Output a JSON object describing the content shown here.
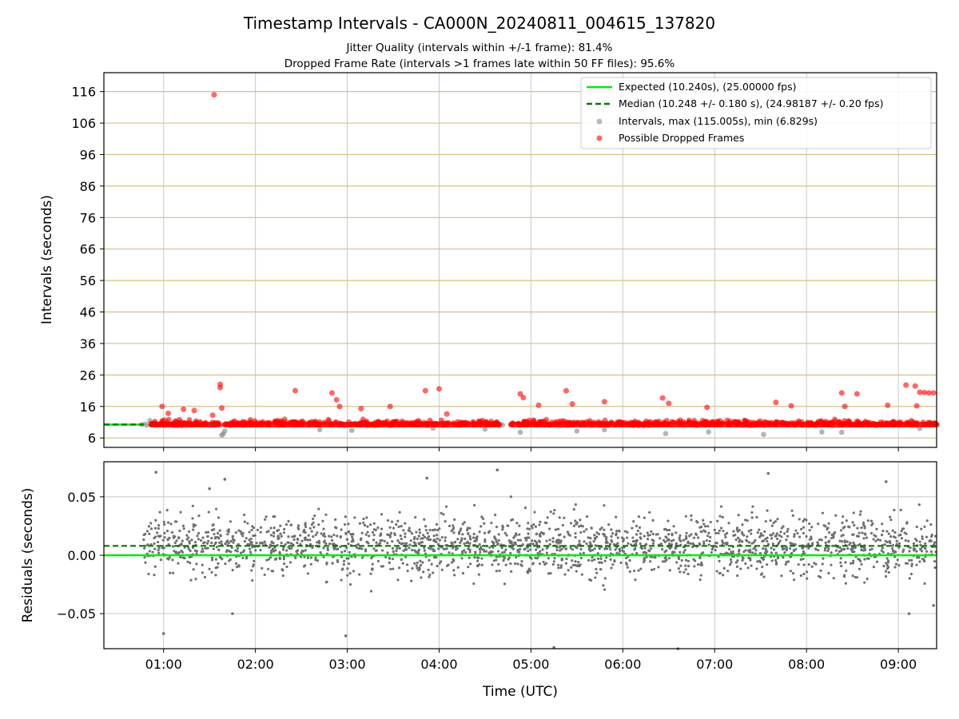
{
  "chart_data": [
    {
      "type": "scatter",
      "title": "Timestamp Intervals - CA000N_20240811_004615_137820",
      "subtitle_lines": [
        "Jitter Quality (intervals within +/-1 frame): 81.4%",
        "Dropped Frame Rate (intervals >1 frames late within 50 FF files): 95.6%"
      ],
      "xlabel": "",
      "ylabel": "Intervals (seconds)",
      "xlim": [
        "00:21",
        "09:25"
      ],
      "ylim": [
        3,
        122
      ],
      "yticks": [
        6,
        16,
        26,
        36,
        46,
        56,
        66,
        76,
        86,
        96,
        106,
        116
      ],
      "grid": true,
      "legend_position": "top-right",
      "legend": [
        "Expected (10.240s), (25.00000 fps)",
        "Median (10.248 +/- 0.180 s), (24.98187 +/- 0.20 fps)",
        "Intervals, max (115.005s), min (6.829s)",
        "Possible Dropped Frames"
      ],
      "expected_interval": 10.24,
      "median_interval": 10.248,
      "max_interval": 115.005,
      "min_interval": 6.829,
      "dropped_band": [
        {
          "start": "00:52",
          "end": "01:36",
          "value": 10.24
        },
        {
          "start": "01:40",
          "end": "04:39",
          "value": 10.24
        },
        {
          "start": "04:47",
          "end": "09:25",
          "value": 10.24
        }
      ],
      "dropped_outliers": [
        {
          "x": "01:33",
          "y": 115
        },
        {
          "x": "01:37",
          "y": 23.0
        },
        {
          "x": "01:37",
          "y": 22.0
        },
        {
          "x": "00:59",
          "y": 16.0
        },
        {
          "x": "01:03",
          "y": 13.8
        },
        {
          "x": "01:13",
          "y": 15.1
        },
        {
          "x": "01:20",
          "y": 14.7
        },
        {
          "x": "01:32",
          "y": 13.2
        },
        {
          "x": "01:38",
          "y": 15.5
        },
        {
          "x": "02:26",
          "y": 21.0
        },
        {
          "x": "02:50",
          "y": 20.3
        },
        {
          "x": "02:53",
          "y": 18.1
        },
        {
          "x": "02:55",
          "y": 16.0
        },
        {
          "x": "03:09",
          "y": 15.3
        },
        {
          "x": "03:28",
          "y": 16.0
        },
        {
          "x": "03:51",
          "y": 21.0
        },
        {
          "x": "04:00",
          "y": 21.6
        },
        {
          "x": "04:05",
          "y": 13.6
        },
        {
          "x": "04:53",
          "y": 20.0
        },
        {
          "x": "04:55",
          "y": 18.8
        },
        {
          "x": "05:05",
          "y": 16.4
        },
        {
          "x": "05:23",
          "y": 21.0
        },
        {
          "x": "05:27",
          "y": 16.8
        },
        {
          "x": "05:48",
          "y": 17.5
        },
        {
          "x": "06:26",
          "y": 18.7
        },
        {
          "x": "06:30",
          "y": 17.0
        },
        {
          "x": "06:55",
          "y": 15.7
        },
        {
          "x": "07:40",
          "y": 17.3
        },
        {
          "x": "07:50",
          "y": 16.2
        },
        {
          "x": "08:23",
          "y": 20.3
        },
        {
          "x": "08:25",
          "y": 16.0
        },
        {
          "x": "08:33",
          "y": 20.0
        },
        {
          "x": "08:53",
          "y": 16.4
        },
        {
          "x": "09:05",
          "y": 22.8
        },
        {
          "x": "09:11",
          "y": 22.5
        },
        {
          "x": "09:14",
          "y": 20.5
        },
        {
          "x": "09:17",
          "y": 20.4
        },
        {
          "x": "09:20",
          "y": 20.3
        },
        {
          "x": "09:23",
          "y": 20.3
        },
        {
          "x": "09:12",
          "y": 16.2
        }
      ],
      "interval_low_outliers": [
        {
          "x": "00:46",
          "y": 10.24
        },
        {
          "x": "00:51",
          "y": 11.5
        },
        {
          "x": "01:38",
          "y": 6.9
        },
        {
          "x": "01:39",
          "y": 7.3
        },
        {
          "x": "01:40",
          "y": 8.2
        },
        {
          "x": "02:42",
          "y": 8.6
        },
        {
          "x": "03:03",
          "y": 8.4
        },
        {
          "x": "03:56",
          "y": 9.1
        },
        {
          "x": "04:30",
          "y": 8.8
        },
        {
          "x": "04:53",
          "y": 7.8
        },
        {
          "x": "05:30",
          "y": 8.2
        },
        {
          "x": "05:48",
          "y": 8.6
        },
        {
          "x": "06:28",
          "y": 7.4
        },
        {
          "x": "06:56",
          "y": 7.9
        },
        {
          "x": "07:32",
          "y": 7.1
        },
        {
          "x": "08:10",
          "y": 7.9
        },
        {
          "x": "08:23",
          "y": 7.8
        },
        {
          "x": "09:14",
          "y": 9.0
        }
      ]
    },
    {
      "type": "scatter",
      "title": "",
      "xlabel": "Time (UTC)",
      "ylabel": "Residuals (seconds)",
      "xlim": [
        "00:21",
        "09:25"
      ],
      "ylim": [
        -0.08,
        0.08
      ],
      "yticks": [
        -0.05,
        0.0,
        0.05
      ],
      "ytick_labels": [
        "−0.05",
        "0.00",
        "0.05"
      ],
      "xticks": [
        "01:00",
        "02:00",
        "03:00",
        "04:00",
        "05:00",
        "06:00",
        "07:00",
        "08:00",
        "09:00"
      ],
      "grid": true,
      "expected_line": 0.0,
      "median_line": 0.008,
      "residual_std": 0.018,
      "series_extent": [
        "00:47",
        "09:25"
      ],
      "residual_outliers": [
        {
          "x": "00:55",
          "y": 0.071
        },
        {
          "x": "01:00",
          "y": -0.067
        },
        {
          "x": "01:30",
          "y": 0.057
        },
        {
          "x": "01:40",
          "y": 0.065
        },
        {
          "x": "01:45",
          "y": -0.05
        },
        {
          "x": "02:59",
          "y": -0.069
        },
        {
          "x": "03:52",
          "y": 0.066
        },
        {
          "x": "04:38",
          "y": 0.073
        },
        {
          "x": "05:15",
          "y": -0.079
        },
        {
          "x": "06:36",
          "y": -0.08
        },
        {
          "x": "07:35",
          "y": 0.07
        },
        {
          "x": "08:52",
          "y": 0.063
        },
        {
          "x": "09:07",
          "y": -0.05
        },
        {
          "x": "09:23",
          "y": -0.043
        }
      ]
    }
  ],
  "colors": {
    "expected_line": "#00ee00",
    "median_line": "#007a00",
    "intervals": "#8c8c8c",
    "dropped": "#ff0000",
    "residual_dots": "#707070",
    "hgrid_top": "#d4c087",
    "grid": "#c8c8c8"
  }
}
